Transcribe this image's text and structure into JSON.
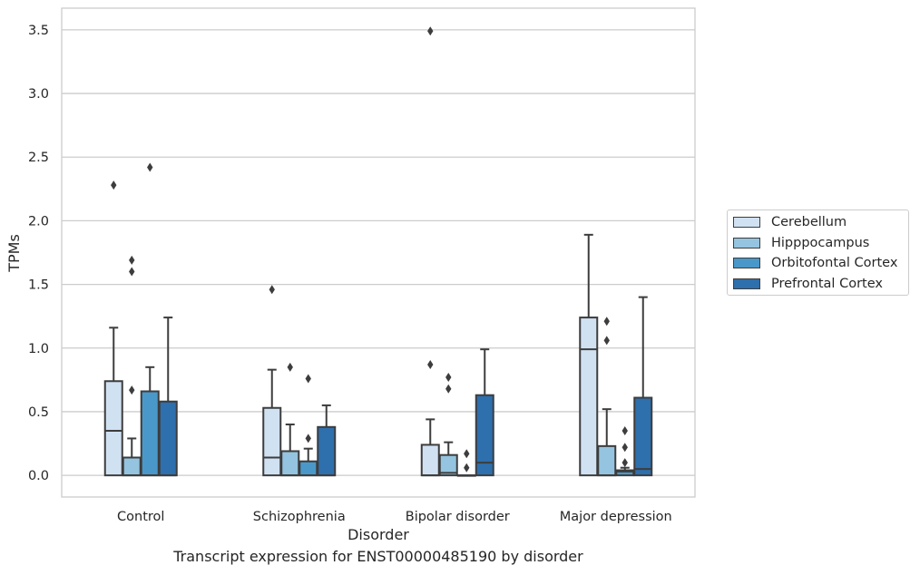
{
  "caption": "Transcript expression for ENST00000485190 by disorder",
  "chart_data": {
    "type": "box",
    "xlabel": "Disorder",
    "ylabel": "TPMs",
    "categories": [
      "Control",
      "Schizophrenia",
      "Bipolar disorder",
      "Major depression"
    ],
    "ylim": [
      -0.17,
      3.67
    ],
    "yticks": [
      "0.0",
      "0.5",
      "1.0",
      "1.5",
      "2.0",
      "2.5",
      "3.0",
      "3.5"
    ],
    "grid": true,
    "legend_position": "right",
    "series": [
      {
        "name": "Cerebellum",
        "color": "#d0e1f2",
        "boxes": [
          {
            "whislo": 0.0,
            "q1": 0.0,
            "med": 0.35,
            "q3": 0.74,
            "whishi": 1.16,
            "fliers": [
              2.28
            ]
          },
          {
            "whislo": 0.0,
            "q1": 0.0,
            "med": 0.14,
            "q3": 0.53,
            "whishi": 0.83,
            "fliers": [
              1.46
            ]
          },
          {
            "whislo": 0.0,
            "q1": 0.0,
            "med": 0.0,
            "q3": 0.24,
            "whishi": 0.44,
            "fliers": [
              0.87,
              3.49
            ]
          },
          {
            "whislo": 0.0,
            "q1": 0.0,
            "med": 0.99,
            "q3": 1.24,
            "whishi": 1.89,
            "fliers": []
          }
        ]
      },
      {
        "name": "Hipppocampus",
        "color": "#94c4df",
        "boxes": [
          {
            "whislo": 0.0,
            "q1": 0.0,
            "med": 0.0,
            "q3": 0.14,
            "whishi": 0.29,
            "fliers": [
              0.67,
              1.6,
              1.69
            ]
          },
          {
            "whislo": 0.0,
            "q1": 0.0,
            "med": 0.0,
            "q3": 0.19,
            "whishi": 0.4,
            "fliers": [
              0.85
            ]
          },
          {
            "whislo": 0.0,
            "q1": 0.0,
            "med": 0.02,
            "q3": 0.16,
            "whishi": 0.26,
            "fliers": [
              0.68,
              0.77
            ]
          },
          {
            "whislo": 0.0,
            "q1": 0.0,
            "med": 0.0,
            "q3": 0.23,
            "whishi": 0.52,
            "fliers": [
              1.06,
              1.21
            ]
          }
        ]
      },
      {
        "name": "Orbitofontal Cortex",
        "color": "#4a98c9",
        "boxes": [
          {
            "whislo": 0.0,
            "q1": 0.0,
            "med": 0.0,
            "q3": 0.66,
            "whishi": 0.85,
            "fliers": [
              2.42
            ]
          },
          {
            "whislo": 0.0,
            "q1": 0.0,
            "med": 0.0,
            "q3": 0.11,
            "whishi": 0.21,
            "fliers": [
              0.29,
              0.76
            ]
          },
          {
            "whislo": 0.0,
            "q1": 0.0,
            "med": 0.0,
            "q3": 0.0,
            "whishi": 0.0,
            "fliers": [
              0.06,
              0.17
            ]
          },
          {
            "whislo": 0.0,
            "q1": 0.0,
            "med": 0.03,
            "q3": 0.04,
            "whishi": 0.06,
            "fliers": [
              0.1,
              0.22,
              0.35
            ]
          }
        ]
      },
      {
        "name": "Prefrontal Cortex",
        "color": "#2e6fad",
        "boxes": [
          {
            "whislo": 0.0,
            "q1": 0.0,
            "med": 0.0,
            "q3": 0.58,
            "whishi": 1.24,
            "fliers": []
          },
          {
            "whislo": 0.0,
            "q1": 0.0,
            "med": 0.0,
            "q3": 0.38,
            "whishi": 0.55,
            "fliers": []
          },
          {
            "whislo": 0.0,
            "q1": 0.0,
            "med": 0.1,
            "q3": 0.63,
            "whishi": 0.99,
            "fliers": []
          },
          {
            "whislo": 0.0,
            "q1": 0.0,
            "med": 0.05,
            "q3": 0.61,
            "whishi": 1.4,
            "fliers": []
          }
        ]
      }
    ]
  }
}
